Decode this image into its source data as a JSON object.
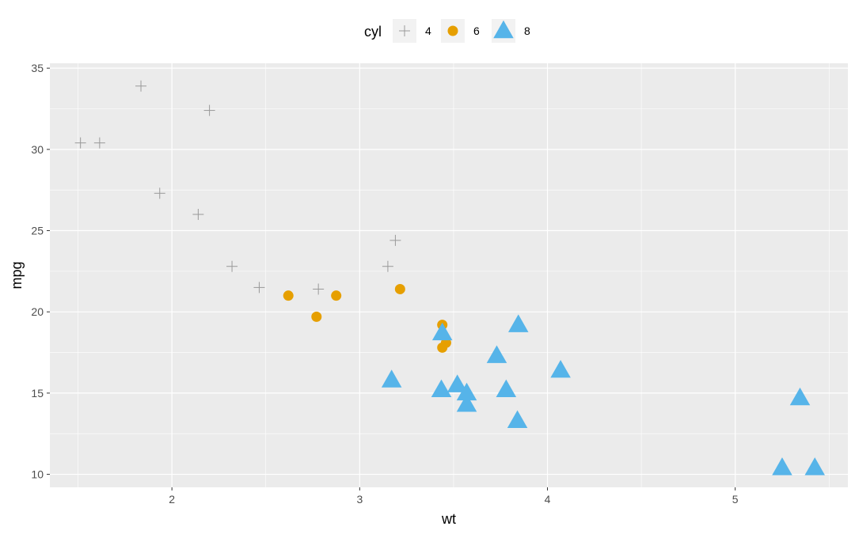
{
  "chart_data": {
    "type": "scatter",
    "xlabel": "wt",
    "ylabel": "mpg",
    "xlim": [
      1.35,
      5.6
    ],
    "ylim": [
      9.2,
      35.3
    ],
    "x_ticks": [
      2,
      3,
      4,
      5
    ],
    "y_ticks": [
      10,
      15,
      20,
      25,
      30,
      35
    ],
    "grid": true,
    "legend": {
      "title": "cyl",
      "placement": "top",
      "entries": [
        {
          "label": "4",
          "shape": "plus",
          "color": "#999999"
        },
        {
          "label": "6",
          "shape": "circle",
          "color": "#E69F00"
        },
        {
          "label": "8",
          "shape": "triangle",
          "color": "#56B4E9"
        }
      ]
    },
    "series": [
      {
        "name": "4",
        "shape": "plus",
        "color": "#999999",
        "points": [
          {
            "x": 2.32,
            "y": 22.8
          },
          {
            "x": 3.19,
            "y": 24.4
          },
          {
            "x": 3.15,
            "y": 22.8
          },
          {
            "x": 2.2,
            "y": 32.4
          },
          {
            "x": 1.615,
            "y": 30.4
          },
          {
            "x": 1.835,
            "y": 33.9
          },
          {
            "x": 2.465,
            "y": 21.5
          },
          {
            "x": 1.935,
            "y": 27.3
          },
          {
            "x": 2.14,
            "y": 26.0
          },
          {
            "x": 1.513,
            "y": 30.4
          },
          {
            "x": 2.78,
            "y": 21.4
          }
        ]
      },
      {
        "name": "6",
        "shape": "circle",
        "color": "#E69F00",
        "points": [
          {
            "x": 2.62,
            "y": 21.0
          },
          {
            "x": 2.875,
            "y": 21.0
          },
          {
            "x": 3.215,
            "y": 21.4
          },
          {
            "x": 3.46,
            "y": 18.1
          },
          {
            "x": 3.44,
            "y": 19.2
          },
          {
            "x": 3.44,
            "y": 17.8
          },
          {
            "x": 2.77,
            "y": 19.7
          }
        ]
      },
      {
        "name": "8",
        "shape": "triangle",
        "color": "#56B4E9",
        "points": [
          {
            "x": 3.44,
            "y": 18.7
          },
          {
            "x": 3.57,
            "y": 14.3
          },
          {
            "x": 4.07,
            "y": 16.4
          },
          {
            "x": 3.73,
            "y": 17.3
          },
          {
            "x": 3.78,
            "y": 15.2
          },
          {
            "x": 5.25,
            "y": 10.4
          },
          {
            "x": 5.424,
            "y": 10.4
          },
          {
            "x": 5.345,
            "y": 14.7
          },
          {
            "x": 3.52,
            "y": 15.5
          },
          {
            "x": 3.435,
            "y": 15.2
          },
          {
            "x": 3.84,
            "y": 13.3
          },
          {
            "x": 3.845,
            "y": 19.2
          },
          {
            "x": 3.17,
            "y": 15.8
          },
          {
            "x": 3.57,
            "y": 15.0
          }
        ]
      }
    ]
  }
}
